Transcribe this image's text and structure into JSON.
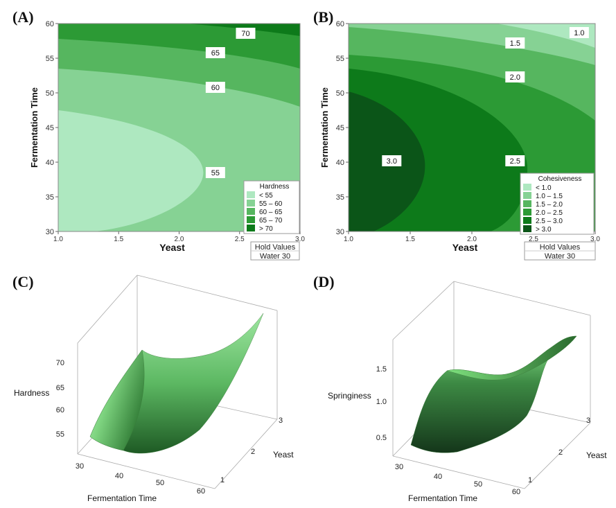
{
  "panels": {
    "A": "(A)",
    "B": "(B)",
    "C": "(C)",
    "D": "(D)"
  },
  "colors": {
    "band1": "#aee8c0",
    "band2": "#86d294",
    "band3": "#56b65f",
    "band4": "#2c9a35",
    "band5": "#0d7a1a",
    "band6": "#0b5518",
    "surface_light": "#b8f4b8",
    "surface_dark": "#184a1e",
    "axis": "#666666"
  },
  "chart_data": [
    {
      "type": "contour",
      "panel": "A",
      "xlabel": "Yeast",
      "ylabel": "Fermentation Time",
      "xlim": [
        1.0,
        3.0
      ],
      "ylim": [
        30,
        60
      ],
      "xticks": [
        "1.0",
        "1.5",
        "2.0",
        "2.5",
        "3.0"
      ],
      "yticks": [
        "30",
        "35",
        "40",
        "45",
        "50",
        "55",
        "60"
      ],
      "contour_levels": [
        55,
        60,
        65,
        70
      ],
      "contour_labels": [
        "55",
        "60",
        "65",
        "70"
      ],
      "legend": {
        "title": "Hardness",
        "entries": [
          {
            "label": "<   55"
          },
          {
            "label": "55  –  60"
          },
          {
            "label": "60  –  65"
          },
          {
            "label": "65  –  70"
          },
          {
            "label": ">   70"
          }
        ]
      },
      "hold_values": {
        "title": "Hold Values",
        "value": "Water  30"
      }
    },
    {
      "type": "contour",
      "panel": "B",
      "xlabel": "Yeast",
      "ylabel": "Fermentation Time",
      "xlim": [
        1.0,
        3.0
      ],
      "ylim": [
        30,
        60
      ],
      "xticks": [
        "1.0",
        "1.5",
        "2.0",
        "2.5",
        "3.0"
      ],
      "yticks": [
        "30",
        "35",
        "40",
        "45",
        "50",
        "55",
        "60"
      ],
      "contour_levels": [
        1.0,
        1.5,
        2.0,
        2.5,
        3.0
      ],
      "contour_labels": [
        "1.0",
        "1.5",
        "2.0",
        "2.5",
        "3.0"
      ],
      "legend": {
        "title": "Cohesiveness",
        "entries": [
          {
            "label": "<   1.0"
          },
          {
            "label": "1.0  –  1.5"
          },
          {
            "label": "1.5  –  2.0"
          },
          {
            "label": "2.0  –  2.5"
          },
          {
            "label": "2.5  –  3.0"
          },
          {
            "label": ">   3.0"
          }
        ]
      },
      "hold_values": {
        "title": "Hold Values",
        "value": "Water  30"
      }
    },
    {
      "type": "surface",
      "panel": "C",
      "xlabel": "Fermentation Time",
      "ylabel": "Yeast",
      "zlabel": "Hardness",
      "xticks": [
        "30",
        "40",
        "50",
        "60"
      ],
      "yticks": [
        "1",
        "2",
        "3"
      ],
      "zticks": [
        "55",
        "60",
        "65",
        "70"
      ]
    },
    {
      "type": "surface",
      "panel": "D",
      "xlabel": "Fermentation Time",
      "ylabel": "Yeast",
      "zlabel": "Springiness",
      "xticks": [
        "30",
        "40",
        "50",
        "60"
      ],
      "yticks": [
        "1",
        "2",
        "3"
      ],
      "zticks": [
        "0.5",
        "1.0",
        "1.5"
      ]
    }
  ]
}
